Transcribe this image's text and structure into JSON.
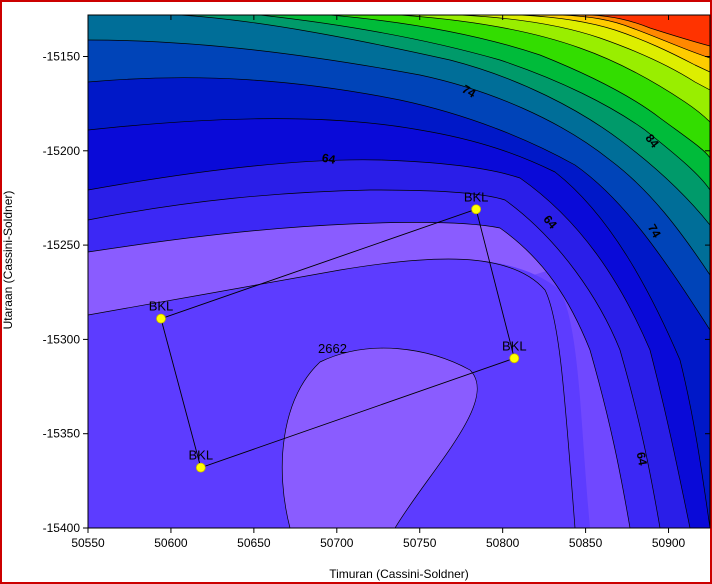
{
  "map": {
    "xlabel": "Timuran (Cassini-Soldner)",
    "ylabel": "Utaraan (Cassini-Soldner)",
    "x_ticks": [
      "50550",
      "50600",
      "50650",
      "50700",
      "50750",
      "50800",
      "50850",
      "50900"
    ],
    "y_ticks": [
      "-15150",
      "-15200",
      "-15250",
      "-15300",
      "-15350",
      "-15400"
    ],
    "x_range": [
      50550,
      50925
    ],
    "y_range": [
      -15400,
      -15128
    ],
    "contour_labels": [
      "74",
      "84",
      "64",
      "64",
      "74",
      "64"
    ],
    "annotation": "2662",
    "stations": [
      {
        "label": "BKL",
        "x": 50594,
        "y": -15289
      },
      {
        "label": "BKL",
        "x": 50784,
        "y": -15231
      },
      {
        "label": "BKL",
        "x": 50807,
        "y": -15310
      },
      {
        "label": "BKL",
        "x": 50618,
        "y": -15368
      }
    ],
    "colors": {
      "border": "#cc0000",
      "station_marker": "#ffff00",
      "low": "#9966ff",
      "mid": "#0000dd",
      "high": "#ff2200"
    }
  }
}
